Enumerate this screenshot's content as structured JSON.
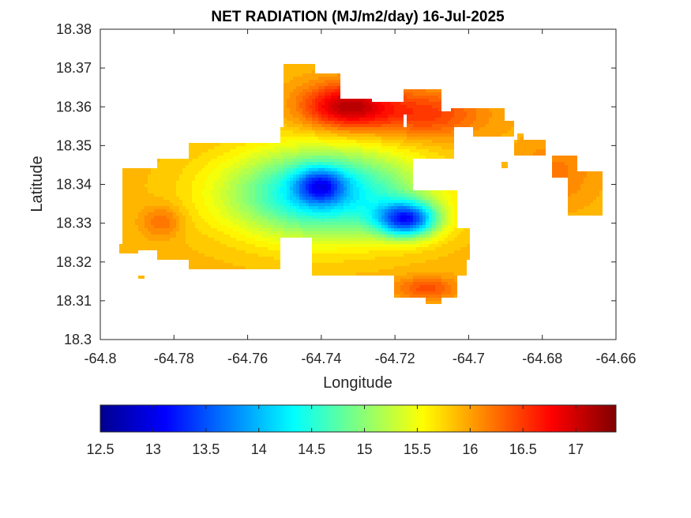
{
  "chart_data": {
    "type": "heatmap",
    "title": "NET RADIATION (MJ/m2/day) 16-Jul-2025",
    "xlabel": "Longitude",
    "ylabel": "Latitude",
    "xlim": [
      -64.8,
      -64.66
    ],
    "ylim": [
      18.3,
      18.38
    ],
    "xticks": [
      "-64.8",
      "-64.78",
      "-64.76",
      "-64.74",
      "-64.72",
      "-64.7",
      "-64.68",
      "-64.66"
    ],
    "yticks": [
      "18.3",
      "18.31",
      "18.32",
      "18.33",
      "18.34",
      "18.35",
      "18.36",
      "18.37",
      "18.38"
    ],
    "grid": false,
    "colormap": "jet",
    "colorbar": {
      "orientation": "horizontal",
      "placement": "bottom",
      "range": [
        12.5,
        17.38
      ],
      "ticks": [
        "12.5",
        "13",
        "13.5",
        "14",
        "14.5",
        "15",
        "15.5",
        "16",
        "16.5",
        "17"
      ]
    },
    "hotspots": [
      {
        "lon": -64.735,
        "lat": 18.359,
        "value": 17.2
      },
      {
        "lon": -64.738,
        "lat": 18.34,
        "value": 13.0
      },
      {
        "lon": -64.716,
        "lat": 18.332,
        "value": 12.6
      },
      {
        "lon": -64.783,
        "lat": 18.332,
        "value": 16.2
      },
      {
        "lon": -64.715,
        "lat": 18.356,
        "value": 16.4
      }
    ]
  }
}
